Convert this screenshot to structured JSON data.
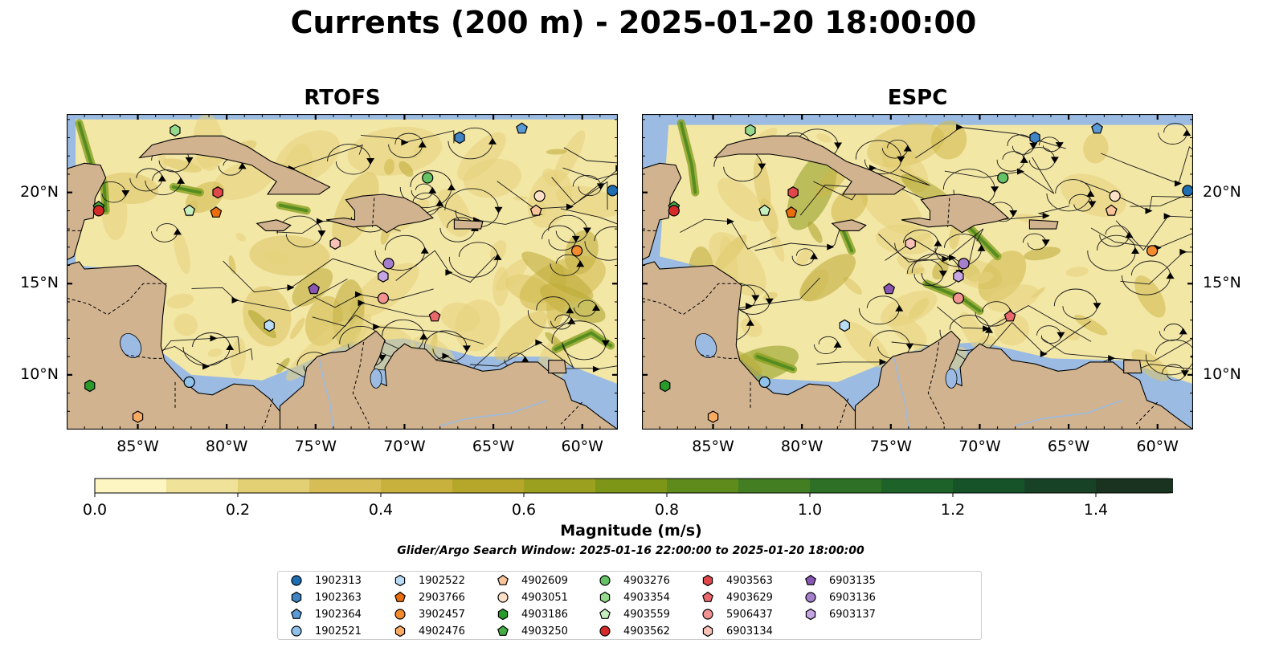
{
  "title": "Currents (200 m) - 2025-01-20 18:00:00",
  "panels": [
    {
      "id": "rtofs",
      "title": "RTOFS"
    },
    {
      "id": "espc",
      "title": "ESPC"
    }
  ],
  "map": {
    "lon_range": [
      -89,
      -58
    ],
    "lat_range": [
      7,
      24.3
    ],
    "x_ticks": [
      "85°W",
      "80°W",
      "75°W",
      "70°W",
      "65°W",
      "60°W"
    ],
    "x_tick_values": [
      -85,
      -80,
      -75,
      -70,
      -65,
      -60
    ],
    "y_ticks": [
      "20°N",
      "15°N",
      "10°N"
    ],
    "y_tick_values": [
      20,
      15,
      10
    ],
    "colors": {
      "ocean": "#9bbbe2",
      "land": "#d1b38f",
      "coast": "#000000",
      "river": "#9bbbe2"
    }
  },
  "colorbar": {
    "label": "Magnitude (m/s)",
    "ticks": [
      "0.0",
      "0.2",
      "0.4",
      "0.6",
      "0.8",
      "1.0",
      "1.2",
      "1.4"
    ],
    "tick_values": [
      0.0,
      0.2,
      0.4,
      0.6,
      0.8,
      1.0,
      1.2,
      1.4
    ],
    "max": 1.5,
    "extend": "max",
    "colors": [
      "#fdf6c2",
      "#f0e299",
      "#e3cf74",
      "#d6bd55",
      "#c8b13c",
      "#b6a72a",
      "#9ba01e",
      "#7d9618",
      "#5e8b1c",
      "#447e22",
      "#2e7126",
      "#1d6329",
      "#175328",
      "#174226",
      "#1a3220"
    ]
  },
  "search_window": "Glider/Argo Search Window: 2025-01-16 22:00:00 to 2025-01-20 18:00:00",
  "legend": [
    {
      "id": "1902313",
      "shape": "circle",
      "color": "#1f6eb4"
    },
    {
      "id": "1902363",
      "shape": "hexagon",
      "color": "#3f84c5"
    },
    {
      "id": "1902364",
      "shape": "pentagon",
      "color": "#5a9ad5"
    },
    {
      "id": "1902521",
      "shape": "circle",
      "color": "#8fc2ea"
    },
    {
      "id": "1902522",
      "shape": "hexagon",
      "color": "#b8dcf5"
    },
    {
      "id": "2903766",
      "shape": "pentagon",
      "color": "#ea6e0c"
    },
    {
      "id": "3902457",
      "shape": "circle",
      "color": "#f58b2d"
    },
    {
      "id": "4902476",
      "shape": "hexagon",
      "color": "#f9ab63"
    },
    {
      "id": "4902609",
      "shape": "pentagon",
      "color": "#f9c49a"
    },
    {
      "id": "4903051",
      "shape": "circle",
      "color": "#fde0c8"
    },
    {
      "id": "4903186",
      "shape": "hexagon",
      "color": "#2a9a2a"
    },
    {
      "id": "4903250",
      "shape": "pentagon",
      "color": "#46ad46"
    },
    {
      "id": "4903276",
      "shape": "circle",
      "color": "#66c266"
    },
    {
      "id": "4903354",
      "shape": "hexagon",
      "color": "#95d98d"
    },
    {
      "id": "4903559",
      "shape": "pentagon",
      "color": "#c6efbf"
    },
    {
      "id": "4903562",
      "shape": "circle",
      "color": "#d42a2a"
    },
    {
      "id": "4903563",
      "shape": "hexagon",
      "color": "#e0474a"
    },
    {
      "id": "4903629",
      "shape": "pentagon",
      "color": "#e8686b"
    },
    {
      "id": "5906437",
      "shape": "circle",
      "color": "#f19391"
    },
    {
      "id": "6903134",
      "shape": "hexagon",
      "color": "#f8c0b7"
    },
    {
      "id": "6903135",
      "shape": "pentagon",
      "color": "#8a56b4"
    },
    {
      "id": "6903136",
      "shape": "circle",
      "color": "#a67fcc"
    },
    {
      "id": "6903137",
      "shape": "hexagon",
      "color": "#c5a5e3"
    }
  ],
  "floats": [
    {
      "id": "1902313",
      "lon": -58.3,
      "lat": 20.1
    },
    {
      "id": "1902363",
      "lon": -66.9,
      "lat": 23.0
    },
    {
      "id": "1902364",
      "lon": -63.4,
      "lat": 23.5
    },
    {
      "id": "1902521",
      "lon": -82.1,
      "lat": 9.6
    },
    {
      "id": "1902522",
      "lon": -77.6,
      "lat": 12.7
    },
    {
      "id": "2903766",
      "lon": -80.6,
      "lat": 18.9
    },
    {
      "id": "3902457",
      "lon": -60.3,
      "lat": 16.8
    },
    {
      "id": "4902476",
      "lon": -85.0,
      "lat": 7.7
    },
    {
      "id": "4902609",
      "lon": -62.6,
      "lat": 19.0
    },
    {
      "id": "4903051",
      "lon": -62.4,
      "lat": 19.8
    },
    {
      "id": "4903186",
      "lon": -87.7,
      "lat": 9.4
    },
    {
      "id": "4903250",
      "lon": -87.2,
      "lat": 19.2
    },
    {
      "id": "4903276",
      "lon": -68.7,
      "lat": 20.8
    },
    {
      "id": "4903354",
      "lon": -82.9,
      "lat": 23.4
    },
    {
      "id": "4903559",
      "lon": -82.1,
      "lat": 19.0
    },
    {
      "id": "4903562",
      "lon": -87.2,
      "lat": 19.0
    },
    {
      "id": "4903563",
      "lon": -80.5,
      "lat": 20.0
    },
    {
      "id": "4903629",
      "lon": -68.3,
      "lat": 13.2
    },
    {
      "id": "5906437",
      "lon": -71.2,
      "lat": 14.2
    },
    {
      "id": "6903134",
      "lon": -73.9,
      "lat": 17.2
    },
    {
      "id": "6903135",
      "lon": -75.1,
      "lat": 14.7
    },
    {
      "id": "6903136",
      "lon": -70.9,
      "lat": 16.1
    },
    {
      "id": "6903137",
      "lon": -71.2,
      "lat": 15.4
    }
  ]
}
